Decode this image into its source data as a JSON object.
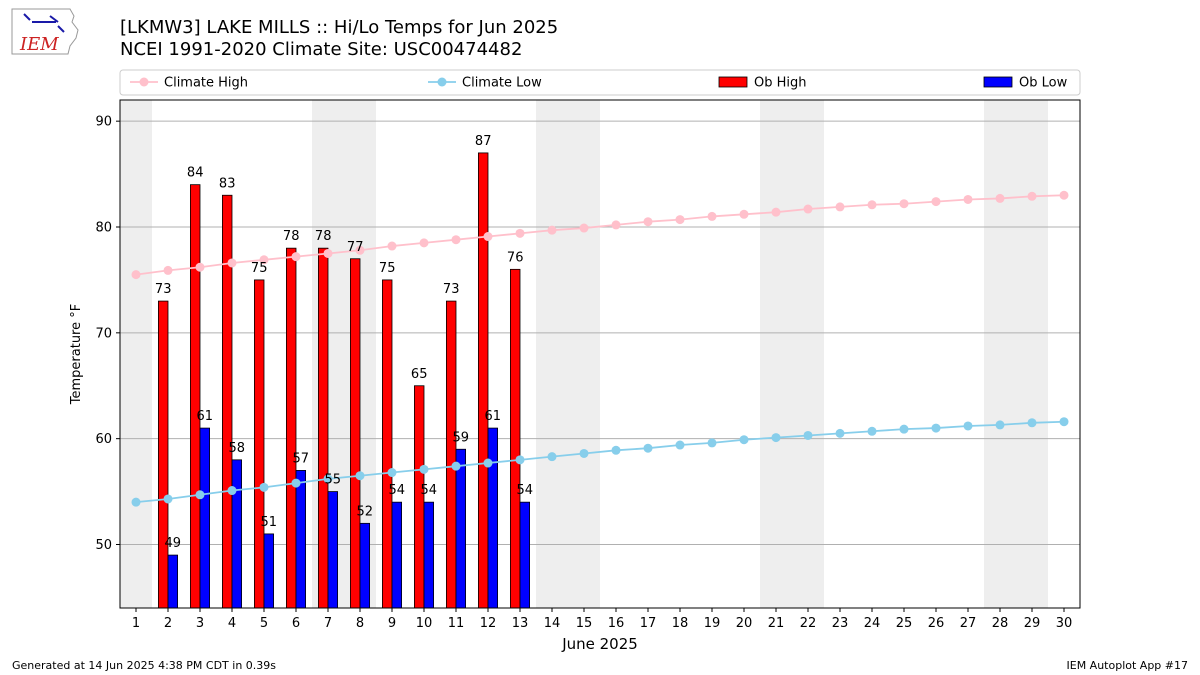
{
  "header": {
    "title_line1": "[LKMW3] LAKE MILLS :: Hi/Lo Temps for Jun 2025",
    "title_line2": "NCEI 1991-2020 Climate Site: USC00474482",
    "logo_text": "IEM"
  },
  "footer": {
    "generated": "Generated at 14 Jun 2025 4:38 PM CDT in 0.39s",
    "app": "IEM Autoplot App #17"
  },
  "chart_data": {
    "type": "bar",
    "xlabel": "June 2025",
    "ylabel": "Temperature °F",
    "ylim": [
      44,
      92
    ],
    "xlim": [
      0.5,
      30.5
    ],
    "yticks": [
      50,
      60,
      70,
      80,
      90
    ],
    "grid": "horizontal",
    "legend_placement": "top",
    "weekend_shading_color": "#eeeeee",
    "days": [
      1,
      2,
      3,
      4,
      5,
      6,
      7,
      8,
      9,
      10,
      11,
      12,
      13,
      14,
      15,
      16,
      17,
      18,
      19,
      20,
      21,
      22,
      23,
      24,
      25,
      26,
      27,
      28,
      29,
      30
    ],
    "shaded_days": [
      1,
      7,
      8,
      14,
      15,
      21,
      22,
      28,
      29
    ],
    "series": [
      {
        "name": "Climate High",
        "kind": "line",
        "color": "#ffc0cb",
        "values": [
          75.5,
          75.9,
          76.2,
          76.6,
          76.9,
          77.2,
          77.5,
          77.8,
          78.2,
          78.5,
          78.8,
          79.1,
          79.4,
          79.7,
          79.9,
          80.2,
          80.5,
          80.7,
          81.0,
          81.2,
          81.4,
          81.7,
          81.9,
          82.1,
          82.2,
          82.4,
          82.6,
          82.7,
          82.9,
          83.0
        ]
      },
      {
        "name": "Climate Low",
        "kind": "line",
        "color": "#87ceeb",
        "values": [
          54.0,
          54.3,
          54.7,
          55.1,
          55.4,
          55.8,
          56.2,
          56.5,
          56.8,
          57.1,
          57.4,
          57.7,
          58.0,
          58.3,
          58.6,
          58.9,
          59.1,
          59.4,
          59.6,
          59.9,
          60.1,
          60.3,
          60.5,
          60.7,
          60.9,
          61.0,
          61.2,
          61.3,
          61.5,
          61.6
        ]
      },
      {
        "name": "Ob High",
        "kind": "bar",
        "color": "#ff0000",
        "values": [
          null,
          73,
          84,
          83,
          75,
          78,
          78,
          77,
          75,
          65,
          73,
          87,
          76
        ]
      },
      {
        "name": "Ob Low",
        "kind": "bar",
        "color": "#0000ff",
        "values": [
          null,
          49,
          61,
          58,
          51,
          57,
          55,
          52,
          54,
          54,
          59,
          61,
          54
        ]
      }
    ]
  }
}
